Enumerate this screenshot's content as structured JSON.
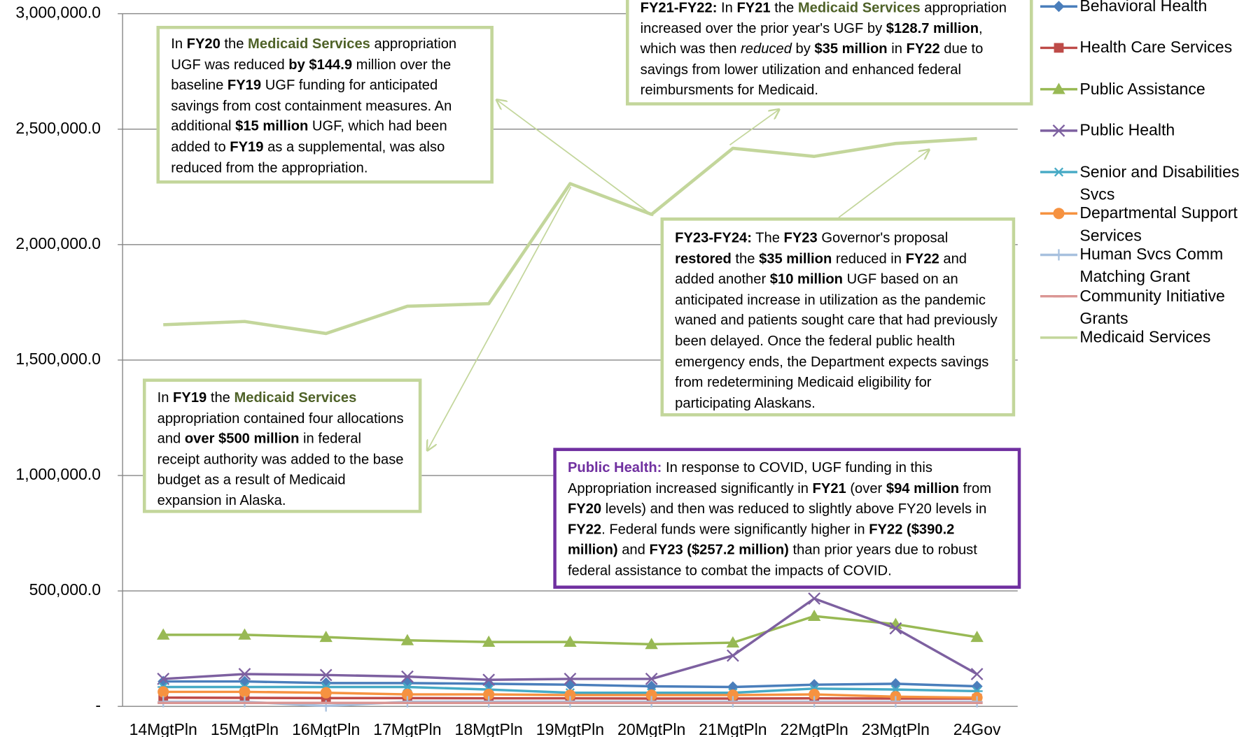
{
  "chart_data": {
    "type": "line",
    "categories": [
      "14MgtPln",
      "15MgtPln",
      "16MgtPln",
      "17MgtPln",
      "18MgtPln",
      "19MgtPln",
      "20MgtPln",
      "21MgtPln",
      "22MgtPln",
      "23MgtPln",
      "24Gov"
    ],
    "ylim": [
      0,
      3000000
    ],
    "yticks": [
      {
        "value": 0,
        "label": "-"
      },
      {
        "value": 500000,
        "label": "500,000.0"
      },
      {
        "value": 1000000,
        "label": "1,000,000.0"
      },
      {
        "value": 1500000,
        "label": "1,500,000.0"
      },
      {
        "value": 2000000,
        "label": "2,000,000.0"
      },
      {
        "value": 2500000,
        "label": "2,500,000.0"
      },
      {
        "value": 3000000,
        "label": "3,000,000.0"
      }
    ],
    "grid": true,
    "legend": "right",
    "series": [
      {
        "name": "Behavioral Health",
        "color": "#4a7ebb",
        "marker": "diamond",
        "values": [
          108000,
          108000,
          101000,
          101000,
          98000,
          94000,
          87000,
          84000,
          94000,
          98000,
          87000
        ]
      },
      {
        "name": "Health Care Services",
        "color": "#be4b48",
        "marker": "square",
        "values": [
          38000,
          37000,
          36000,
          36000,
          35000,
          35000,
          34000,
          34000,
          35000,
          34000,
          34000
        ]
      },
      {
        "name": "Public Assistance",
        "color": "#98b954",
        "marker": "triangle",
        "values": [
          310000,
          310000,
          300000,
          286000,
          279000,
          279000,
          269000,
          276000,
          391000,
          356000,
          300000
        ]
      },
      {
        "name": "Public Health",
        "color": "#7d60a0",
        "marker": "x",
        "values": [
          119000,
          140000,
          136000,
          129000,
          115000,
          119000,
          119000,
          220000,
          467000,
          338000,
          140000
        ]
      },
      {
        "name": "Senior and Disabilities Svcs",
        "color": "#46aac5",
        "marker": "asterisk",
        "values": [
          84000,
          84000,
          84000,
          84000,
          73000,
          59000,
          59000,
          59000,
          77000,
          73000,
          66000
        ]
      },
      {
        "name": "Departmental Support Services",
        "color": "#f69240",
        "marker": "circle",
        "values": [
          63000,
          63000,
          59000,
          52000,
          52000,
          49000,
          49000,
          49000,
          52000,
          42000,
          38000
        ]
      },
      {
        "name": "Human Svcs Comm Matching Grant",
        "color": "#a7c0de",
        "marker": "plus",
        "values": [
          20000,
          20000,
          2000,
          20000,
          20000,
          20000,
          20000,
          20000,
          20000,
          20000,
          20000
        ]
      },
      {
        "name": "Community Initiative Grants",
        "color": "#da9694",
        "marker": "dash",
        "values": [
          15000,
          15000,
          15000,
          15000,
          15000,
          15000,
          15000,
          15000,
          15000,
          15000,
          15000
        ]
      },
      {
        "name": "Medicaid Services",
        "color": "#c3d69b",
        "marker": "none",
        "values": [
          1653000,
          1667000,
          1615000,
          1733000,
          1744000,
          2264000,
          2131000,
          2417000,
          2382000,
          2438000,
          2459000
        ]
      }
    ],
    "annotations": [
      {
        "runs": [
          {
            "text": "In "
          },
          {
            "text": "FY20",
            "bold": true
          },
          {
            "text": " the "
          },
          {
            "text": "Medicaid Services",
            "bold": true,
            "color": "#4f6228"
          },
          {
            "text": " appropriation UGF was reduced "
          },
          {
            "text": "by $144.9",
            "bold": true
          },
          {
            "text": " million over the baseline "
          },
          {
            "text": "FY19",
            "bold": true
          },
          {
            "text": " UGF funding for anticipated savings from cost containment measures. An additional "
          },
          {
            "text": "$15 million",
            "bold": true
          },
          {
            "text": " UGF, which had been added to "
          },
          {
            "text": "FY19",
            "bold": true
          },
          {
            "text": " as a supplemental, was also reduced from the appropriation."
          }
        ]
      },
      {
        "runs": [
          {
            "text": "FY21-FY22:",
            "bold": true
          },
          {
            "text": " In "
          },
          {
            "text": "FY21",
            "bold": true
          },
          {
            "text": " the "
          },
          {
            "text": "Medicaid Services",
            "bold": true,
            "color": "#4f6228"
          },
          {
            "text": " appropriation increased over the prior year's UGF by "
          },
          {
            "text": "$128.7 million",
            "bold": true
          },
          {
            "text": ", which was then "
          },
          {
            "text": "reduced",
            "italic": true
          },
          {
            "text": " by "
          },
          {
            "text": "$35 million",
            "bold": true
          },
          {
            "text": " in "
          },
          {
            "text": "FY22",
            "bold": true
          },
          {
            "text": " due to savings from lower utilization and enhanced federal reimbursments for Medicaid."
          }
        ]
      },
      {
        "runs": [
          {
            "text": "FY23-FY24:",
            "bold": true
          },
          {
            "text": " The "
          },
          {
            "text": "FY23",
            "bold": true
          },
          {
            "text": " Governor's proposal "
          },
          {
            "text": "restored",
            "bold": true
          },
          {
            "text": " the "
          },
          {
            "text": "$35 million",
            "bold": true
          },
          {
            "text": " reduced in "
          },
          {
            "text": "FY22",
            "bold": true
          },
          {
            "text": " and added another "
          },
          {
            "text": "$10 million",
            "bold": true
          },
          {
            "text": " UGF based on an anticipated increase in utilization as the pandemic waned and patients sought care that had previously been delayed. Once the federal public health emergency ends, the Department expects savings from redetermining Medicaid eligibility for participating Alaskans."
          }
        ]
      },
      {
        "runs": [
          {
            "text": "In "
          },
          {
            "text": "FY19",
            "bold": true
          },
          {
            "text": " the "
          },
          {
            "text": "Medicaid Services",
            "bold": true,
            "color": "#4f6228"
          },
          {
            "text": " appropriation contained four allocations and "
          },
          {
            "text": "over $500 million",
            "bold": true
          },
          {
            "text": " in federal receipt authority was added to the base budget as a result of Medicaid expansion in Alaska."
          }
        ]
      },
      {
        "runs": [
          {
            "text": "Public Health:",
            "bold": true,
            "color": "#7030a0"
          },
          {
            "text": " In response to COVID, UGF funding in this Appropriation increased significantly in "
          },
          {
            "text": "FY21",
            "bold": true
          },
          {
            "text": " (over "
          },
          {
            "text": "$94 million",
            "bold": true
          },
          {
            "text": " from "
          },
          {
            "text": "FY20",
            "bold": true
          },
          {
            "text": " levels) and then was reduced to slightly above FY20 levels in "
          },
          {
            "text": "FY22",
            "bold": true
          },
          {
            "text": ". Federal funds were significantly higher in "
          },
          {
            "text": "FY22",
            "bold": true
          },
          {
            "text": " ($390.2 million)",
            "bold": true
          },
          {
            "text": " and "
          },
          {
            "text": "FY23 ($257.2 million)",
            "bold": true
          },
          {
            "text": " than prior years due to robust federal assistance to combat the impacts of COVID."
          }
        ]
      }
    ]
  }
}
